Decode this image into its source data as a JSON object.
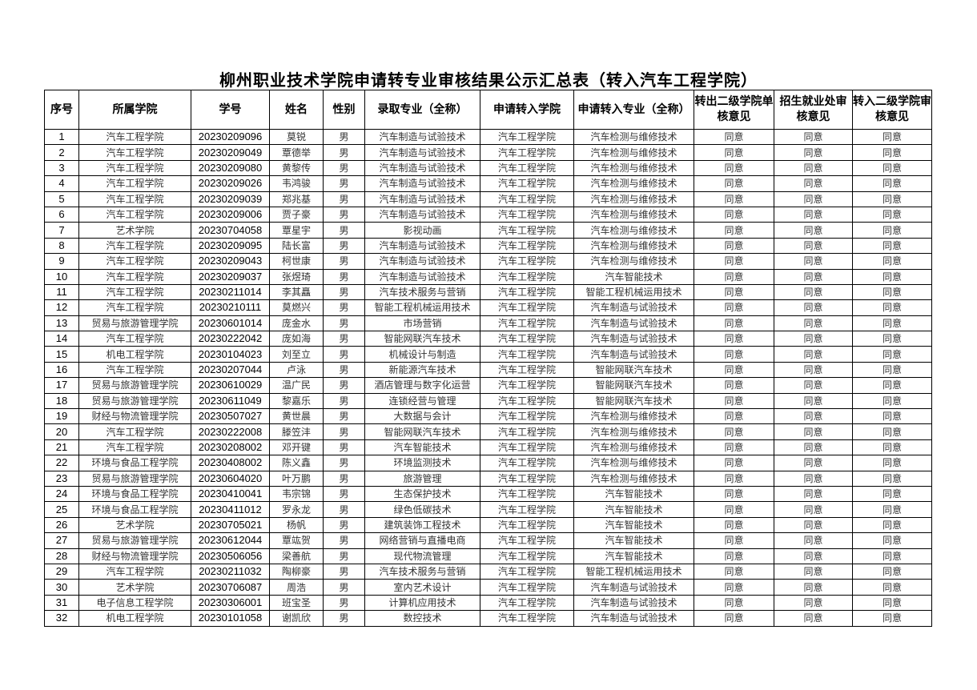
{
  "title": "柳州职业技术学院申请转专业审核结果公示汇总表（转入汽车工程学院）",
  "headers": [
    "序号",
    "所属学院",
    "学号",
    "姓名",
    "性别",
    "录取专业（全称）",
    "申请转入学院",
    "申请转入专业（全称）",
    "转出二级学院单核意见",
    "招生就业处审核意见",
    "转入二级学院审核意见"
  ],
  "rows": [
    [
      "1",
      "汽车工程学院",
      "20230209096",
      "莫锐",
      "男",
      "汽车制造与试验技术",
      "汽车工程学院",
      "汽车检测与维修技术",
      "同意",
      "同意",
      "同意"
    ],
    [
      "2",
      "汽车工程学院",
      "20230209049",
      "覃德举",
      "男",
      "汽车制造与试验技术",
      "汽车工程学院",
      "汽车检测与维修技术",
      "同意",
      "同意",
      "同意"
    ],
    [
      "3",
      "汽车工程学院",
      "20230209080",
      "黄黎传",
      "男",
      "汽车制造与试验技术",
      "汽车工程学院",
      "汽车检测与维修技术",
      "同意",
      "同意",
      "同意"
    ],
    [
      "4",
      "汽车工程学院",
      "20230209026",
      "韦鸿骏",
      "男",
      "汽车制造与试验技术",
      "汽车工程学院",
      "汽车检测与维修技术",
      "同意",
      "同意",
      "同意"
    ],
    [
      "5",
      "汽车工程学院",
      "20230209039",
      "郑兆基",
      "男",
      "汽车制造与试验技术",
      "汽车工程学院",
      "汽车检测与维修技术",
      "同意",
      "同意",
      "同意"
    ],
    [
      "6",
      "汽车工程学院",
      "20230209006",
      "贾子豪",
      "男",
      "汽车制造与试验技术",
      "汽车工程学院",
      "汽车检测与维修技术",
      "同意",
      "同意",
      "同意"
    ],
    [
      "7",
      "艺术学院",
      "20230704058",
      "覃星宇",
      "男",
      "影视动画",
      "汽车工程学院",
      "汽车检测与维修技术",
      "同意",
      "同意",
      "同意"
    ],
    [
      "8",
      "汽车工程学院",
      "20230209095",
      "陆长富",
      "男",
      "汽车制造与试验技术",
      "汽车工程学院",
      "汽车检测与维修技术",
      "同意",
      "同意",
      "同意"
    ],
    [
      "9",
      "汽车工程学院",
      "20230209043",
      "柯世康",
      "男",
      "汽车制造与试验技术",
      "汽车工程学院",
      "汽车检测与维修技术",
      "同意",
      "同意",
      "同意"
    ],
    [
      "10",
      "汽车工程学院",
      "20230209037",
      "张煜琦",
      "男",
      "汽车制造与试验技术",
      "汽车工程学院",
      "汽车智能技术",
      "同意",
      "同意",
      "同意"
    ],
    [
      "11",
      "汽车工程学院",
      "20230211014",
      "李其矗",
      "男",
      "汽车技术服务与营销",
      "汽车工程学院",
      "智能工程机械运用技术",
      "同意",
      "同意",
      "同意"
    ],
    [
      "12",
      "汽车工程学院",
      "20230210111",
      "莫燃兴",
      "男",
      "智能工程机械运用技术",
      "汽车工程学院",
      "汽车制造与试验技术",
      "同意",
      "同意",
      "同意"
    ],
    [
      "13",
      "贸易与旅游管理学院",
      "20230601014",
      "庞金水",
      "男",
      "市场营销",
      "汽车工程学院",
      "汽车制造与试验技术",
      "同意",
      "同意",
      "同意"
    ],
    [
      "14",
      "汽车工程学院",
      "20230222042",
      "庞如海",
      "男",
      "智能网联汽车技术",
      "汽车工程学院",
      "汽车制造与试验技术",
      "同意",
      "同意",
      "同意"
    ],
    [
      "15",
      "机电工程学院",
      "20230104023",
      "刘至立",
      "男",
      "机械设计与制造",
      "汽车工程学院",
      "汽车制造与试验技术",
      "同意",
      "同意",
      "同意"
    ],
    [
      "16",
      "汽车工程学院",
      "20230207044",
      "卢泳",
      "男",
      "新能源汽车技术",
      "汽车工程学院",
      "智能网联汽车技术",
      "同意",
      "同意",
      "同意"
    ],
    [
      "17",
      "贸易与旅游管理学院",
      "20230610029",
      "温广民",
      "男",
      "酒店管理与数字化运营",
      "汽车工程学院",
      "智能网联汽车技术",
      "同意",
      "同意",
      "同意"
    ],
    [
      "18",
      "贸易与旅游管理学院",
      "20230611049",
      "黎嘉乐",
      "男",
      "连锁经营与管理",
      "汽车工程学院",
      "智能网联汽车技术",
      "同意",
      "同意",
      "同意"
    ],
    [
      "19",
      "财经与物流管理学院",
      "20230507027",
      "黄世晨",
      "男",
      "大数据与会计",
      "汽车工程学院",
      "汽车检测与维修技术",
      "同意",
      "同意",
      "同意"
    ],
    [
      "20",
      "汽车工程学院",
      "20230222008",
      "滕笠沣",
      "男",
      "智能网联汽车技术",
      "汽车工程学院",
      "汽车检测与维修技术",
      "同意",
      "同意",
      "同意"
    ],
    [
      "21",
      "汽车工程学院",
      "20230208002",
      "邓开键",
      "男",
      "汽车智能技术",
      "汽车工程学院",
      "汽车检测与维修技术",
      "同意",
      "同意",
      "同意"
    ],
    [
      "22",
      "环境与食品工程学院",
      "20230408002",
      "陈义鑫",
      "男",
      "环境监测技术",
      "汽车工程学院",
      "汽车检测与维修技术",
      "同意",
      "同意",
      "同意"
    ],
    [
      "23",
      "贸易与旅游管理学院",
      "20230604020",
      "叶万鹏",
      "男",
      "旅游管理",
      "汽车工程学院",
      "汽车检测与维修技术",
      "同意",
      "同意",
      "同意"
    ],
    [
      "24",
      "环境与食品工程学院",
      "20230410041",
      "韦宗锦",
      "男",
      "生态保护技术",
      "汽车工程学院",
      "汽车智能技术",
      "同意",
      "同意",
      "同意"
    ],
    [
      "25",
      "环境与食品工程学院",
      "20230411012",
      "罗永龙",
      "男",
      "绿色低碳技术",
      "汽车工程学院",
      "汽车智能技术",
      "同意",
      "同意",
      "同意"
    ],
    [
      "26",
      "艺术学院",
      "20230705021",
      "杨帆",
      "男",
      "建筑装饰工程技术",
      "汽车工程学院",
      "汽车智能技术",
      "同意",
      "同意",
      "同意"
    ],
    [
      "27",
      "贸易与旅游管理学院",
      "20230612044",
      "覃竑贺",
      "男",
      "网络营销与直播电商",
      "汽车工程学院",
      "汽车智能技术",
      "同意",
      "同意",
      "同意"
    ],
    [
      "28",
      "财经与物流管理学院",
      "20230506056",
      "梁善航",
      "男",
      "现代物流管理",
      "汽车工程学院",
      "汽车智能技术",
      "同意",
      "同意",
      "同意"
    ],
    [
      "29",
      "汽车工程学院",
      "20230211032",
      "陶柳豪",
      "男",
      "汽车技术服务与营销",
      "汽车工程学院",
      "智能工程机械运用技术",
      "同意",
      "同意",
      "同意"
    ],
    [
      "30",
      "艺术学院",
      "20230706087",
      "周浩",
      "男",
      "室内艺术设计",
      "汽车工程学院",
      "汽车制造与试验技术",
      "同意",
      "同意",
      "同意"
    ],
    [
      "31",
      "电子信息工程学院",
      "20230306001",
      "班宝圣",
      "男",
      "计算机应用技术",
      "汽车工程学院",
      "汽车制造与试验技术",
      "同意",
      "同意",
      "同意"
    ],
    [
      "32",
      "机电工程学院",
      "20230101058",
      "谢凯欣",
      "男",
      "数控技术",
      "汽车工程学院",
      "汽车制造与试验技术",
      "同意",
      "同意",
      "同意"
    ]
  ]
}
